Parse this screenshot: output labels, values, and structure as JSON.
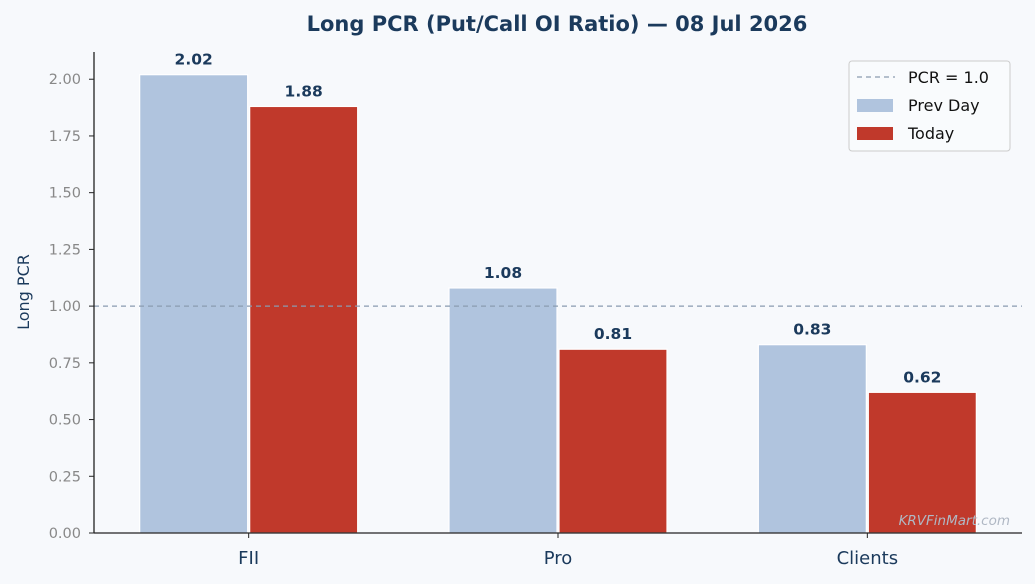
{
  "chart_data": {
    "type": "bar",
    "title": "Long PCR (Put/Call OI Ratio) — 08 Jul 2026",
    "xlabel": "",
    "ylabel": "Long PCR",
    "categories": [
      "FII",
      "Pro",
      "Clients"
    ],
    "series": [
      {
        "name": "Prev Day",
        "values": [
          2.02,
          1.08,
          0.83
        ],
        "color": "#b0c4de"
      },
      {
        "name": "Today",
        "values": [
          1.88,
          0.81,
          0.62
        ],
        "color": "#c0392b"
      }
    ],
    "data_labels": [
      [
        "2.02",
        "1.08",
        "0.83"
      ],
      [
        "1.88",
        "0.81",
        "0.62"
      ]
    ],
    "reference_line": {
      "value": 1.0,
      "label": "PCR = 1.0",
      "color": "#8a9bb0",
      "style": "dashed"
    },
    "ylim": [
      0,
      2.12
    ],
    "yticks": [
      0,
      0.25,
      0.5,
      0.75,
      1.0,
      1.25,
      1.5,
      1.75,
      2.0
    ],
    "ytick_labels": [
      "0.00",
      "0.25",
      "0.50",
      "0.75",
      "1.00",
      "1.25",
      "1.50",
      "1.75",
      "2.00"
    ],
    "grid": false,
    "legend_position": "top-right",
    "legend": [
      "PCR = 1.0",
      "Prev Day",
      "Today"
    ],
    "watermark": "KRVFinMart.com"
  }
}
